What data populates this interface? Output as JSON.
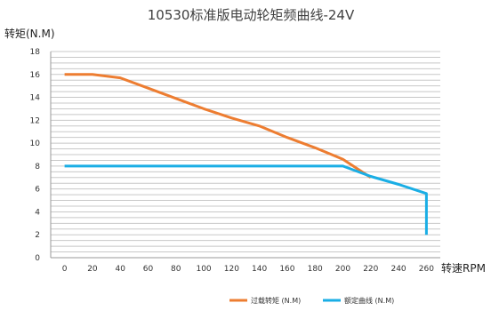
{
  "chart_data": {
    "type": "line",
    "title": "10530标准版电动轮矩频曲线-24V",
    "ylabel": "转矩(N.M)",
    "xlabel": "转速RPM",
    "xlim": [
      -10,
      270
    ],
    "ylim": [
      0,
      18
    ],
    "x_ticks": [
      0,
      20,
      40,
      60,
      80,
      100,
      120,
      140,
      160,
      180,
      200,
      220,
      240,
      260
    ],
    "y_ticks": [
      0,
      2,
      4,
      6,
      8,
      10,
      12,
      14,
      16,
      18
    ],
    "minor_y_step": 0.5,
    "grid": true,
    "legend_position": "bottom",
    "series": [
      {
        "name": "过载转矩 (N.M)",
        "color": "#ed7d31",
        "points": [
          [
            0,
            16
          ],
          [
            20,
            16
          ],
          [
            40,
            15.7
          ],
          [
            60,
            14.8
          ],
          [
            80,
            13.9
          ],
          [
            100,
            13.0
          ],
          [
            120,
            12.2
          ],
          [
            140,
            11.5
          ],
          [
            160,
            10.5
          ],
          [
            180,
            9.6
          ],
          [
            200,
            8.6
          ],
          [
            220,
            7.0
          ]
        ]
      },
      {
        "name": "额定曲线 (N.M)",
        "color": "#1aaee5",
        "points": [
          [
            0,
            8
          ],
          [
            20,
            8
          ],
          [
            40,
            8
          ],
          [
            60,
            8
          ],
          [
            80,
            8
          ],
          [
            100,
            8
          ],
          [
            120,
            8
          ],
          [
            140,
            8
          ],
          [
            160,
            8
          ],
          [
            180,
            8
          ],
          [
            200,
            8
          ],
          [
            220,
            7.1
          ],
          [
            240,
            6.4
          ],
          [
            260,
            5.6
          ],
          [
            260,
            2
          ]
        ]
      }
    ]
  }
}
